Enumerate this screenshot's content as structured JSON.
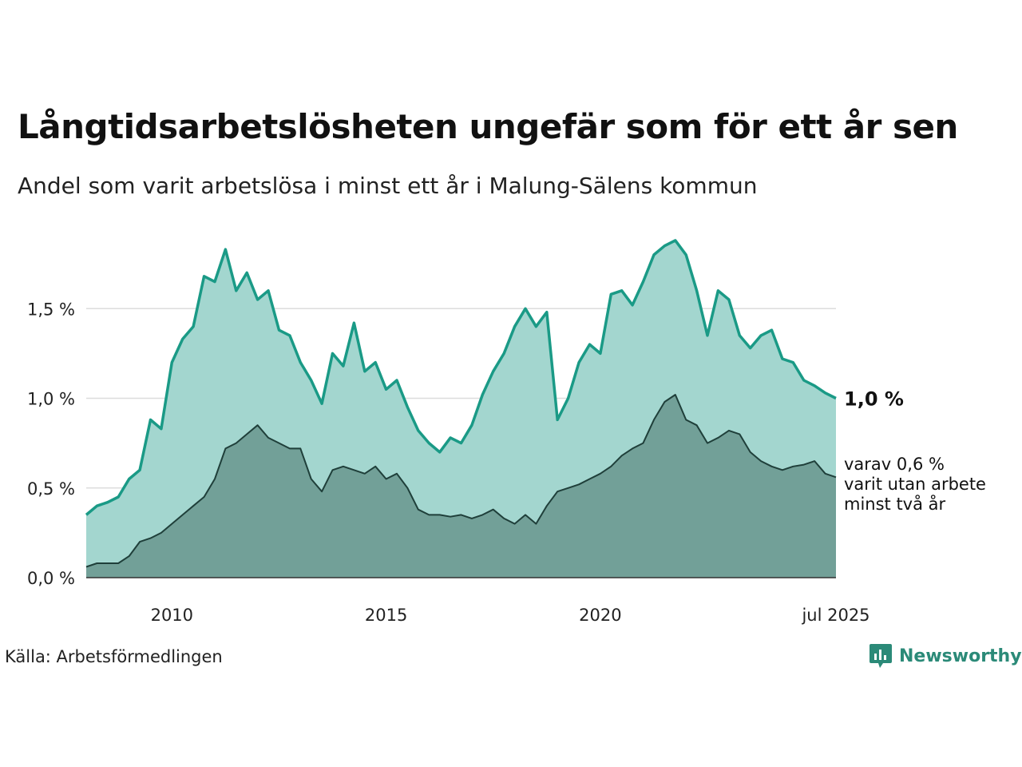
{
  "title": "Långtidsarbetslösheten ungefär som för ett år sen",
  "subtitle": "Andel som varit arbetslösa i minst ett år i Malung-Sälens kommun",
  "source": "Källa: Arbetsförmedlingen",
  "brand": "Newsworthy",
  "colors": {
    "series1_line": "#1a9a86",
    "series1_fill": "#a3d6cf",
    "series2_line": "#1f3f3a",
    "series2_fill": "#72a098",
    "grid": "#dddddd"
  },
  "chart_data": {
    "type": "area",
    "x_start": "2008-01",
    "x_end": "2025-07",
    "ylim": [
      0,
      2.0
    ],
    "y_ticks": [
      {
        "value": 0.0,
        "label": "0,0 %"
      },
      {
        "value": 0.5,
        "label": "0,5 %"
      },
      {
        "value": 1.0,
        "label": "1,0 %"
      },
      {
        "value": 1.5,
        "label": "1,5 %"
      }
    ],
    "x_ticks": [
      {
        "date": "2010-01",
        "label": "2010"
      },
      {
        "date": "2015-01",
        "label": "2015"
      },
      {
        "date": "2020-01",
        "label": "2020"
      },
      {
        "date": "2025-07",
        "label": "jul 2025"
      }
    ],
    "series": [
      {
        "points": [
          [
            "2008-01",
            0.35
          ],
          [
            "2008-04",
            0.4
          ],
          [
            "2008-07",
            0.42
          ],
          [
            "2008-10",
            0.45
          ],
          [
            "2009-01",
            0.55
          ],
          [
            "2009-04",
            0.6
          ],
          [
            "2009-07",
            0.88
          ],
          [
            "2009-10",
            0.83
          ],
          [
            "2010-01",
            1.2
          ],
          [
            "2010-04",
            1.33
          ],
          [
            "2010-07",
            1.4
          ],
          [
            "2010-10",
            1.68
          ],
          [
            "2011-01",
            1.65
          ],
          [
            "2011-04",
            1.83
          ],
          [
            "2011-07",
            1.6
          ],
          [
            "2011-10",
            1.7
          ],
          [
            "2012-01",
            1.55
          ],
          [
            "2012-04",
            1.6
          ],
          [
            "2012-07",
            1.38
          ],
          [
            "2012-10",
            1.35
          ],
          [
            "2013-01",
            1.2
          ],
          [
            "2013-04",
            1.1
          ],
          [
            "2013-07",
            0.97
          ],
          [
            "2013-10",
            1.25
          ],
          [
            "2014-01",
            1.18
          ],
          [
            "2014-04",
            1.42
          ],
          [
            "2014-07",
            1.15
          ],
          [
            "2014-10",
            1.2
          ],
          [
            "2015-01",
            1.05
          ],
          [
            "2015-04",
            1.1
          ],
          [
            "2015-07",
            0.95
          ],
          [
            "2015-10",
            0.82
          ],
          [
            "2016-01",
            0.75
          ],
          [
            "2016-04",
            0.7
          ],
          [
            "2016-07",
            0.78
          ],
          [
            "2016-10",
            0.75
          ],
          [
            "2017-01",
            0.85
          ],
          [
            "2017-04",
            1.02
          ],
          [
            "2017-07",
            1.15
          ],
          [
            "2017-10",
            1.25
          ],
          [
            "2018-01",
            1.4
          ],
          [
            "2018-04",
            1.5
          ],
          [
            "2018-07",
            1.4
          ],
          [
            "2018-10",
            1.48
          ],
          [
            "2019-01",
            0.88
          ],
          [
            "2019-04",
            1.0
          ],
          [
            "2019-07",
            1.2
          ],
          [
            "2019-10",
            1.3
          ],
          [
            "2020-01",
            1.25
          ],
          [
            "2020-04",
            1.58
          ],
          [
            "2020-07",
            1.6
          ],
          [
            "2020-10",
            1.52
          ],
          [
            "2021-01",
            1.65
          ],
          [
            "2021-04",
            1.8
          ],
          [
            "2021-07",
            1.85
          ],
          [
            "2021-10",
            1.88
          ],
          [
            "2022-01",
            1.8
          ],
          [
            "2022-04",
            1.6
          ],
          [
            "2022-07",
            1.35
          ],
          [
            "2022-10",
            1.6
          ],
          [
            "2023-01",
            1.55
          ],
          [
            "2023-04",
            1.35
          ],
          [
            "2023-07",
            1.28
          ],
          [
            "2023-10",
            1.35
          ],
          [
            "2024-01",
            1.38
          ],
          [
            "2024-04",
            1.22
          ],
          [
            "2024-07",
            1.2
          ],
          [
            "2024-10",
            1.1
          ],
          [
            "2025-01",
            1.07
          ],
          [
            "2025-04",
            1.03
          ],
          [
            "2025-07",
            1.0
          ]
        ],
        "end_label": "1,0 %"
      },
      {
        "points": [
          [
            "2008-01",
            0.06
          ],
          [
            "2008-04",
            0.08
          ],
          [
            "2008-07",
            0.08
          ],
          [
            "2008-10",
            0.08
          ],
          [
            "2009-01",
            0.12
          ],
          [
            "2009-04",
            0.2
          ],
          [
            "2009-07",
            0.22
          ],
          [
            "2009-10",
            0.25
          ],
          [
            "2010-01",
            0.3
          ],
          [
            "2010-04",
            0.35
          ],
          [
            "2010-07",
            0.4
          ],
          [
            "2010-10",
            0.45
          ],
          [
            "2011-01",
            0.55
          ],
          [
            "2011-04",
            0.72
          ],
          [
            "2011-07",
            0.75
          ],
          [
            "2011-10",
            0.8
          ],
          [
            "2012-01",
            0.85
          ],
          [
            "2012-04",
            0.78
          ],
          [
            "2012-07",
            0.75
          ],
          [
            "2012-10",
            0.72
          ],
          [
            "2013-01",
            0.72
          ],
          [
            "2013-04",
            0.55
          ],
          [
            "2013-07",
            0.48
          ],
          [
            "2013-10",
            0.6
          ],
          [
            "2014-01",
            0.62
          ],
          [
            "2014-04",
            0.6
          ],
          [
            "2014-07",
            0.58
          ],
          [
            "2014-10",
            0.62
          ],
          [
            "2015-01",
            0.55
          ],
          [
            "2015-04",
            0.58
          ],
          [
            "2015-07",
            0.5
          ],
          [
            "2015-10",
            0.38
          ],
          [
            "2016-01",
            0.35
          ],
          [
            "2016-04",
            0.35
          ],
          [
            "2016-07",
            0.34
          ],
          [
            "2016-10",
            0.35
          ],
          [
            "2017-01",
            0.33
          ],
          [
            "2017-04",
            0.35
          ],
          [
            "2017-07",
            0.38
          ],
          [
            "2017-10",
            0.33
          ],
          [
            "2018-01",
            0.3
          ],
          [
            "2018-04",
            0.35
          ],
          [
            "2018-07",
            0.3
          ],
          [
            "2018-10",
            0.4
          ],
          [
            "2019-01",
            0.48
          ],
          [
            "2019-04",
            0.5
          ],
          [
            "2019-07",
            0.52
          ],
          [
            "2019-10",
            0.55
          ],
          [
            "2020-01",
            0.58
          ],
          [
            "2020-04",
            0.62
          ],
          [
            "2020-07",
            0.68
          ],
          [
            "2020-10",
            0.72
          ],
          [
            "2021-01",
            0.75
          ],
          [
            "2021-04",
            0.88
          ],
          [
            "2021-07",
            0.98
          ],
          [
            "2021-10",
            1.02
          ],
          [
            "2022-01",
            0.88
          ],
          [
            "2022-04",
            0.85
          ],
          [
            "2022-07",
            0.75
          ],
          [
            "2022-10",
            0.78
          ],
          [
            "2023-01",
            0.82
          ],
          [
            "2023-04",
            0.8
          ],
          [
            "2023-07",
            0.7
          ],
          [
            "2023-10",
            0.65
          ],
          [
            "2024-01",
            0.62
          ],
          [
            "2024-04",
            0.6
          ],
          [
            "2024-07",
            0.62
          ],
          [
            "2024-10",
            0.63
          ],
          [
            "2025-01",
            0.65
          ],
          [
            "2025-04",
            0.58
          ],
          [
            "2025-07",
            0.56
          ]
        ],
        "end_label_lines": [
          "varav 0,6 %",
          "varit utan arbete",
          "minst två år"
        ]
      }
    ]
  }
}
